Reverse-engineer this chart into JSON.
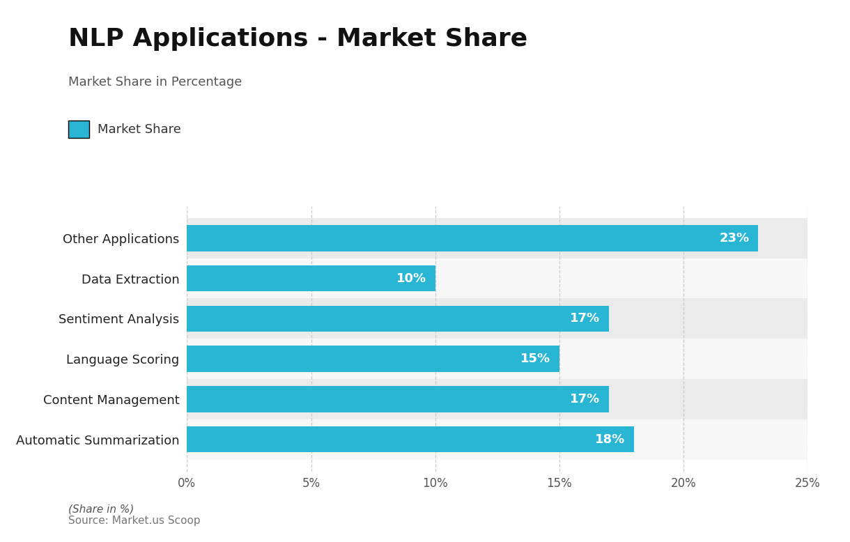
{
  "title": "NLP Applications - Market Share",
  "subtitle": "Market Share in Percentage",
  "legend_label": "Market Share",
  "categories": [
    "Automatic Summarization",
    "Content Management",
    "Language Scoring",
    "Sentiment Analysis",
    "Data Extraction",
    "Other Applications"
  ],
  "values": [
    18,
    17,
    15,
    17,
    10,
    23
  ],
  "bar_color": "#29b6d5",
  "label_color": "#ffffff",
  "background_color": "#ffffff",
  "plot_bg_even": "#ebebeb",
  "plot_bg_odd": "#f7f7f7",
  "xlim": [
    0,
    25
  ],
  "xticks": [
    0,
    5,
    10,
    15,
    20,
    25
  ],
  "title_fontsize": 26,
  "subtitle_fontsize": 13,
  "tick_fontsize": 12,
  "bar_label_fontsize": 13,
  "ytick_fontsize": 13,
  "footer_italic": "(Share in %)",
  "footer_source": "Source: Market.us Scoop",
  "footer_fontsize": 11,
  "legend_patch_color": "#29b6d5"
}
